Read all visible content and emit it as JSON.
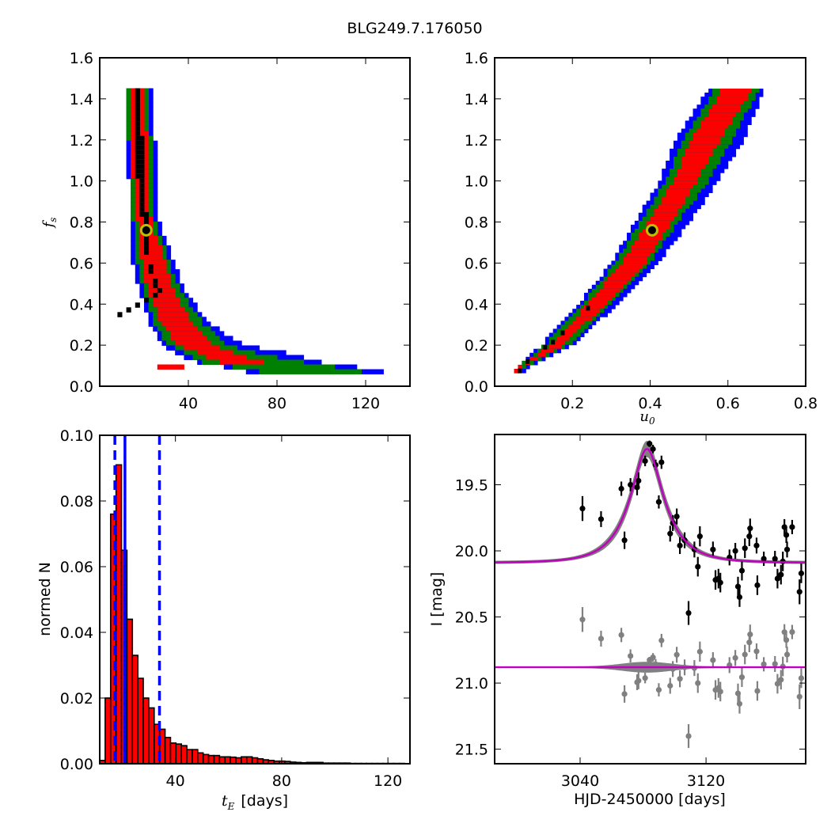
{
  "figure": {
    "title": "BLG249.7.176050"
  },
  "colors": {
    "level1": "#000000",
    "level2": "#ff0000",
    "level3": "#008000",
    "level4": "#0000ff",
    "best_fit_marker": "#bfbf00",
    "hist_bar": "#ff0000",
    "vline": "#0000ff",
    "data_points": "#000000",
    "residuals": "#808080",
    "model": "#bf00bf",
    "model_band": "#808080"
  },
  "chart_data": [
    {
      "id": "tE-fs",
      "type": "heatmap",
      "title": "",
      "xlabel": "",
      "ylabel_math": "f",
      "ylabel_sub": "s",
      "xlim": [
        0,
        140
      ],
      "ylim": [
        0.0,
        1.6
      ],
      "xticks": [
        40,
        80,
        120
      ],
      "xtick_labels": [
        "40",
        "80",
        "120"
      ],
      "yticks": [
        0.0,
        0.2,
        0.4,
        0.6,
        0.8,
        1.0,
        1.2,
        1.4,
        1.6
      ],
      "ytick_labels": [
        "0.0",
        "0.2",
        "0.4",
        "0.6",
        "0.8",
        "1.0",
        "1.2",
        "1.4",
        "1.6"
      ],
      "cell_height": 0.0232,
      "row_range": [
        0.07,
        1.44
      ],
      "levels": [
        "level1",
        "level2",
        "level3",
        "level4"
      ],
      "profile_note": "row bounds in tE units at sampled fs: [fs, blue_lo, green_lo, red_lo, black_lo, black_hi, red_hi, green_hi, blue_hi]",
      "profile": [
        [
          1.43,
          11.0,
          11.0,
          13.2,
          15.0,
          17.0,
          19.3,
          21.4,
          23.2
        ],
        [
          1.2,
          11.0,
          13.0,
          13.2,
          15.0,
          19.3,
          21.4,
          23.2,
          25.0
        ],
        [
          1.0,
          13.0,
          13.2,
          15.0,
          17.0,
          19.3,
          21.4,
          23.2,
          25.0
        ],
        [
          0.8,
          13.2,
          15.0,
          17.0,
          19.3,
          21.4,
          23.2,
          25.0,
          26.8
        ],
        [
          0.6,
          15.0,
          17.0,
          19.3,
          21.4,
          22.8,
          29.3,
          31.4,
          33.6
        ],
        [
          0.45,
          18.0,
          20.0,
          22.0,
          26.0,
          27.5,
          33.6,
          37.1,
          39.3
        ],
        [
          0.3,
          23.0,
          25.0,
          28.0,
          0,
          0,
          42.0,
          47.0,
          50.0
        ],
        [
          0.2,
          28.0,
          31.0,
          35.0,
          0,
          0,
          52.0,
          58.0,
          65.0
        ],
        [
          0.15,
          36.0,
          40.0,
          47.0,
          0,
          0,
          62.0,
          75.0,
          90.0
        ],
        [
          0.11,
          46.0,
          48.0,
          55.0,
          0,
          0,
          78.0,
          95.0,
          103.0
        ],
        [
          0.08,
          65.0,
          71.0,
          0,
          0,
          0,
          0,
          117.0,
          128.0
        ]
      ],
      "best_fit": {
        "x": 21.0,
        "y": 0.76
      }
    },
    {
      "id": "u0-fs",
      "type": "heatmap",
      "title": "",
      "xlabel_math": "u",
      "xlabel_sub": "0",
      "ylabel": "",
      "xlim": [
        0.0,
        0.8
      ],
      "ylim": [
        0.0,
        1.6
      ],
      "xticks": [
        0.2,
        0.4,
        0.6,
        0.8
      ],
      "xtick_labels": [
        "0.2",
        "0.4",
        "0.6",
        "0.8"
      ],
      "yticks": [
        0.0,
        0.2,
        0.4,
        0.6,
        0.8,
        1.0,
        1.2,
        1.4,
        1.6
      ],
      "ytick_labels": [
        "0.0",
        "0.2",
        "0.4",
        "0.6",
        "0.8",
        "1.0",
        "1.2",
        "1.4",
        "1.6"
      ],
      "cell_height": 0.0195,
      "row_range": [
        0.07,
        1.44
      ],
      "profile_note": "row bounds in u0 units at sampled fs: [fs, blue_lo, green_lo, red_lo, red_hi, green_hi, blue_hi]",
      "profile": [
        [
          1.43,
          0.545,
          0.565,
          0.585,
          0.655,
          0.675,
          0.69
        ],
        [
          1.2,
          0.465,
          0.485,
          0.505,
          0.58,
          0.61,
          0.64
        ],
        [
          1.0,
          0.425,
          0.44,
          0.46,
          0.52,
          0.55,
          0.575
        ],
        [
          0.8,
          0.36,
          0.375,
          0.395,
          0.455,
          0.47,
          0.5
        ],
        [
          0.6,
          0.3,
          0.31,
          0.325,
          0.385,
          0.4,
          0.42
        ],
        [
          0.4,
          0.215,
          0.225,
          0.24,
          0.285,
          0.3,
          0.315
        ],
        [
          0.2,
          0.12,
          0.13,
          0.145,
          0.175,
          0.19,
          0.2
        ],
        [
          0.08,
          0.05,
          0.05,
          0.05,
          0.06,
          0.07,
          0.08
        ]
      ],
      "core_cells": [
        [
          0.065,
          0.075
        ],
        [
          0.085,
          0.12
        ],
        [
          0.13,
          0.19
        ],
        [
          0.15,
          0.215
        ],
        [
          0.175,
          0.26
        ],
        [
          0.24,
          0.38
        ]
      ],
      "best_fit": {
        "x": 0.405,
        "y": 0.76
      }
    },
    {
      "id": "tE-hist",
      "type": "bar",
      "title": "",
      "xlabel_math": "t",
      "xlabel_sub": "E",
      "xlabel_text": "[days]",
      "ylabel": "normed N",
      "xlim": [
        11.5,
        128.3
      ],
      "ylim": [
        0.0,
        0.1
      ],
      "xticks": [
        40,
        80,
        120
      ],
      "xtick_labels": [
        "40",
        "80",
        "120"
      ],
      "yticks": [
        0.0,
        0.02,
        0.04,
        0.06,
        0.08,
        0.1
      ],
      "ytick_labels": [
        "0.00",
        "0.02",
        "0.04",
        "0.06",
        "0.08",
        "0.10"
      ],
      "bin_start": 11.5,
      "bin_width": 2.05,
      "values": [
        0.001,
        0.02,
        0.076,
        0.091,
        0.065,
        0.044,
        0.033,
        0.026,
        0.02,
        0.017,
        0.012,
        0.0105,
        0.008,
        0.0063,
        0.006,
        0.0055,
        0.0043,
        0.0043,
        0.0033,
        0.0028,
        0.0025,
        0.0025,
        0.0021,
        0.0021,
        0.002,
        0.0018,
        0.0021,
        0.0021,
        0.0018,
        0.0015,
        0.0012,
        0.001,
        0.0008,
        0.0008,
        0.0007,
        0.0005,
        0.0004,
        0.0003,
        0.0004,
        0.0004,
        0.0004,
        0.0002,
        0.0002,
        0.0002,
        0.0002,
        0.0002,
        0.0001,
        0.0001,
        0.0001,
        0.0001,
        0.0001,
        0.0001,
        0.0001,
        0.0001,
        0.0001,
        0.0001
      ],
      "vlines": [
        {
          "x": 17.2,
          "style": "dashed"
        },
        {
          "x": 21.0,
          "style": "solid"
        },
        {
          "x": 34.0,
          "style": "dashed"
        }
      ]
    },
    {
      "id": "lightcurve",
      "type": "scatter",
      "title": "",
      "xlabel": "HJD-2450000 [days]",
      "ylabel": "I [mag]",
      "xlim": [
        2985.7,
        3183.3
      ],
      "ylim": [
        21.61,
        19.12
      ],
      "xticks": [
        3040,
        3120
      ],
      "xtick_labels": [
        "3040",
        "3120"
      ],
      "yticks": [
        19.5,
        20.0,
        20.5,
        21.0,
        21.5
      ],
      "ytick_labels": [
        "19.5",
        "20.0",
        "20.5",
        "21.0",
        "21.5"
      ],
      "model": {
        "t0": 3082.5,
        "tE": 21.0,
        "u0": 0.41,
        "fs": 0.76,
        "baseline_mag": 20.09
      },
      "residual_offset": 20.88,
      "points": [
        [
          3041.5,
          19.68,
          0.094
        ],
        [
          3053.3,
          19.76,
          0.06
        ],
        [
          3066.2,
          19.53,
          0.054
        ],
        [
          3068.2,
          19.92,
          0.066
        ],
        [
          3072.0,
          19.5,
          0.05
        ],
        [
          3076.2,
          19.52,
          0.06
        ],
        [
          3077.1,
          19.47,
          0.064
        ],
        [
          3081.3,
          19.32,
          0.04
        ],
        [
          3084.1,
          19.19,
          0.024
        ],
        [
          3086.3,
          19.23,
          0.032
        ],
        [
          3088.0,
          19.35,
          0.04
        ],
        [
          3091.7,
          19.33,
          0.05
        ],
        [
          3090.0,
          19.63,
          0.05
        ],
        [
          3097.2,
          19.87,
          0.06
        ],
        [
          3098.9,
          19.79,
          0.06
        ],
        [
          3101.4,
          19.74,
          0.06
        ],
        [
          3103.4,
          19.96,
          0.064
        ],
        [
          3106.4,
          19.92,
          0.06
        ],
        [
          3108.9,
          20.47,
          0.09
        ],
        [
          3112.6,
          19.99,
          0.06
        ],
        [
          3114.8,
          20.12,
          0.074
        ],
        [
          3116.1,
          19.89,
          0.076
        ],
        [
          3124.4,
          19.99,
          0.06
        ],
        [
          3126.0,
          20.22,
          0.074
        ],
        [
          3127.9,
          20.21,
          0.074
        ],
        [
          3129.1,
          20.24,
          0.074
        ],
        [
          3134.9,
          20.05,
          0.06
        ],
        [
          3138.6,
          20.0,
          0.06
        ],
        [
          3140.3,
          20.27,
          0.074
        ],
        [
          3141.3,
          20.35,
          0.074
        ],
        [
          3142.8,
          20.15,
          0.074
        ],
        [
          3144.7,
          19.98,
          0.074
        ],
        [
          3147.5,
          19.89,
          0.074
        ],
        [
          3148.0,
          19.83,
          0.074
        ],
        [
          3152.1,
          19.96,
          0.06
        ],
        [
          3152.6,
          20.26,
          0.074
        ],
        [
          3156.7,
          20.06,
          0.054
        ],
        [
          3163.8,
          20.06,
          0.06
        ],
        [
          3165.4,
          20.21,
          0.074
        ],
        [
          3167.6,
          20.18,
          0.074
        ],
        [
          3168.8,
          20.08,
          0.074
        ],
        [
          3169.8,
          19.82,
          0.06
        ],
        [
          3171.0,
          19.88,
          0.06
        ],
        [
          3171.5,
          19.99,
          0.06
        ],
        [
          3174.7,
          19.82,
          0.054
        ],
        [
          3179.4,
          20.31,
          0.094
        ],
        [
          3180.5,
          20.17,
          0.074
        ]
      ]
    }
  ]
}
